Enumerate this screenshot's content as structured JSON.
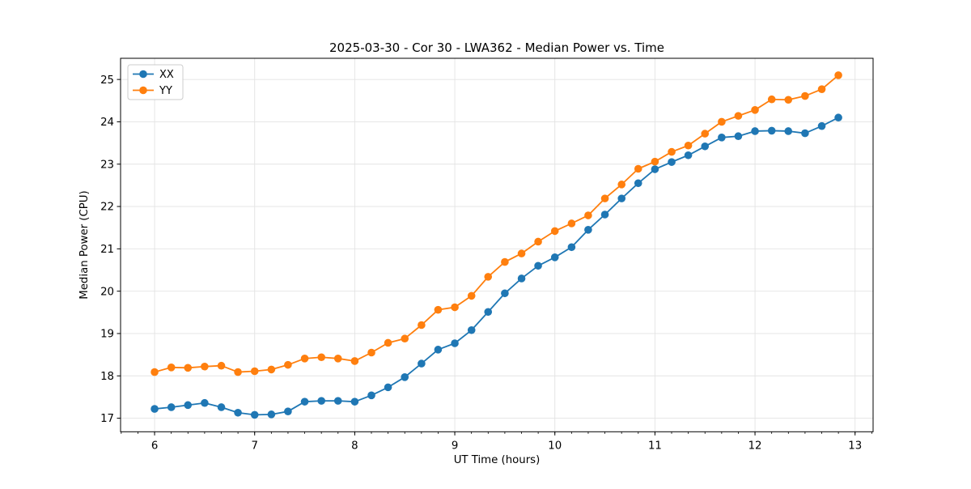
{
  "chart_data": {
    "type": "line",
    "title": "2025-03-30 - Cor 30 - LWA362 - Median Power vs. Time",
    "xlabel": "UT Time (hours)",
    "ylabel": "Median Power (CPU)",
    "grid": true,
    "legend_position": "upper left",
    "xlim": [
      5.66,
      13.18
    ],
    "ylim": [
      16.68,
      25.5
    ],
    "x_ticks": [
      6,
      7,
      8,
      9,
      10,
      11,
      12,
      13
    ],
    "y_ticks": [
      17,
      18,
      19,
      20,
      21,
      22,
      23,
      24,
      25
    ],
    "x_minor_tick_step": 0.166667,
    "colors": {
      "xx": "#1f77b4",
      "yy": "#ff7f0e",
      "grid": "#e3e3e3",
      "spine": "#000000"
    },
    "x": [
      6.0,
      6.167,
      6.333,
      6.5,
      6.667,
      6.833,
      7.0,
      7.167,
      7.333,
      7.5,
      7.667,
      7.833,
      8.0,
      8.167,
      8.333,
      8.5,
      8.667,
      8.833,
      9.0,
      9.167,
      9.333,
      9.5,
      9.667,
      9.833,
      10.0,
      10.167,
      10.333,
      10.5,
      10.667,
      10.833,
      11.0,
      11.167,
      11.333,
      11.5,
      11.667,
      11.833,
      12.0,
      12.167,
      12.333,
      12.5,
      12.667,
      12.833
    ],
    "series": [
      {
        "name": "XX",
        "color": "#1f77b4",
        "values": [
          17.22,
          17.26,
          17.31,
          17.36,
          17.26,
          17.13,
          17.08,
          17.09,
          17.16,
          17.39,
          17.41,
          17.41,
          17.39,
          17.54,
          17.73,
          17.97,
          18.29,
          18.62,
          18.77,
          19.08,
          19.51,
          19.95,
          20.3,
          20.6,
          20.8,
          21.04,
          21.45,
          21.81,
          22.19,
          22.55,
          22.88,
          23.05,
          23.21,
          23.42,
          23.63,
          23.66,
          23.78,
          23.79,
          23.78,
          23.73,
          23.9,
          24.1
        ]
      },
      {
        "name": "YY",
        "color": "#ff7f0e",
        "values": [
          18.09,
          18.2,
          18.19,
          18.22,
          18.24,
          18.09,
          18.11,
          18.15,
          18.26,
          18.41,
          18.44,
          18.41,
          18.35,
          18.55,
          18.78,
          18.88,
          19.2,
          19.56,
          19.62,
          19.89,
          20.34,
          20.69,
          20.89,
          21.17,
          21.42,
          21.6,
          21.79,
          22.19,
          22.52,
          22.89,
          23.06,
          23.29,
          23.44,
          23.72,
          24.0,
          24.14,
          24.28,
          24.53,
          24.52,
          24.61,
          24.77,
          25.1
        ]
      }
    ]
  }
}
